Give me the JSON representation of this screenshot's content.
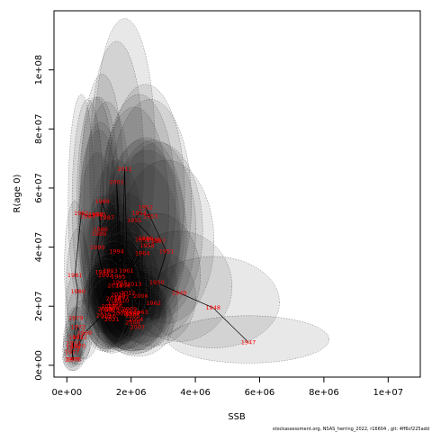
{
  "chart_data": {
    "type": "scatter",
    "xlabel": "SSB",
    "ylabel": "R(age 0)",
    "xlim": [
      -400000,
      11000000
    ],
    "ylim": [
      -4000000,
      120000000
    ],
    "x_ticks": [
      0,
      2000000,
      4000000,
      6000000,
      8000000,
      10000000
    ],
    "x_tick_labels": [
      "0e+00",
      "2e+06",
      "4e+06",
      "6e+06",
      "8e+06",
      "1e+07"
    ],
    "y_ticks": [
      0,
      20000000,
      40000000,
      60000000,
      80000000,
      100000000
    ],
    "y_tick_labels": [
      "0e+00",
      "2e+07",
      "4e+07",
      "6e+07",
      "8e+07",
      "1e+08"
    ],
    "grid": false,
    "footer": "stockassessment.org, NSAS_herring_2022, r16604 , git: 4ff6cf225add",
    "points": [
      {
        "year": "1947",
        "x": 5650000,
        "y": 7800000
      },
      {
        "year": "1948",
        "x": 4550000,
        "y": 19500000
      },
      {
        "year": "1949",
        "x": 3500000,
        "y": 24500000
      },
      {
        "year": "1950",
        "x": 2800000,
        "y": 28000000
      },
      {
        "year": "1951",
        "x": 3100000,
        "y": 38500000
      },
      {
        "year": "1952",
        "x": 2450000,
        "y": 53500000
      },
      {
        "year": "1953",
        "x": 2600000,
        "y": 50500000
      },
      {
        "year": "1954",
        "x": 2250000,
        "y": 51500000
      },
      {
        "year": "1955",
        "x": 2100000,
        "y": 49000000
      },
      {
        "year": "1956",
        "x": 2700000,
        "y": 42500000
      },
      {
        "year": "1957",
        "x": 2850000,
        "y": 42000000
      },
      {
        "year": "1958",
        "x": 2500000,
        "y": 40500000
      },
      {
        "year": "1959",
        "x": 2350000,
        "y": 42500000
      },
      {
        "year": "1960",
        "x": 2450000,
        "y": 43000000
      },
      {
        "year": "1961",
        "x": 1850000,
        "y": 32000000
      },
      {
        "year": "1962",
        "x": 2700000,
        "y": 21000000
      },
      {
        "year": "1963",
        "x": 2300000,
        "y": 18000000
      },
      {
        "year": "1964",
        "x": 2350000,
        "y": 38000000
      },
      {
        "year": "1965",
        "x": 1650000,
        "y": 28000000
      },
      {
        "year": "1966",
        "x": 1500000,
        "y": 20000000
      },
      {
        "year": "1967",
        "x": 2050000,
        "y": 17500000
      },
      {
        "year": "1968",
        "x": 1250000,
        "y": 18500000
      },
      {
        "year": "1969",
        "x": 550000,
        "y": 11000000
      },
      {
        "year": "1970",
        "x": 350000,
        "y": 6500000
      },
      {
        "year": "1971",
        "x": 400000,
        "y": 9500000
      },
      {
        "year": "1972",
        "x": 350000,
        "y": 13000000
      },
      {
        "year": "1973",
        "x": 280000,
        "y": 9500000
      },
      {
        "year": "1974",
        "x": 200000,
        "y": 7500000
      },
      {
        "year": "1975",
        "x": 160000,
        "y": 2000000
      },
      {
        "year": "1976",
        "x": 210000,
        "y": 2000000
      },
      {
        "year": "1977",
        "x": 160000,
        "y": 4500000
      },
      {
        "year": "1978",
        "x": 200000,
        "y": 6000000
      },
      {
        "year": "1979",
        "x": 280000,
        "y": 16000000
      },
      {
        "year": "1980",
        "x": 350000,
        "y": 25000000
      },
      {
        "year": "1981",
        "x": 250000,
        "y": 30500000
      },
      {
        "year": "1982",
        "x": 450000,
        "y": 51500000
      },
      {
        "year": "1983",
        "x": 650000,
        "y": 50500000
      },
      {
        "year": "1984",
        "x": 900000,
        "y": 51000000
      },
      {
        "year": "1985",
        "x": 1000000,
        "y": 51000000
      },
      {
        "year": "1986",
        "x": 1050000,
        "y": 46000000
      },
      {
        "year": "1987",
        "x": 1250000,
        "y": 50000000
      },
      {
        "year": "1988",
        "x": 1100000,
        "y": 55500000
      },
      {
        "year": "1989",
        "x": 1000000,
        "y": 44500000
      },
      {
        "year": "1990",
        "x": 950000,
        "y": 40000000
      },
      {
        "year": "1991",
        "x": 1100000,
        "y": 31500000
      },
      {
        "year": "1992",
        "x": 1200000,
        "y": 30500000
      },
      {
        "year": "1993",
        "x": 1350000,
        "y": 32000000
      },
      {
        "year": "1994",
        "x": 1550000,
        "y": 38500000
      },
      {
        "year": "1995",
        "x": 1600000,
        "y": 30000000
      },
      {
        "year": "1996",
        "x": 1750000,
        "y": 27000000
      },
      {
        "year": "1997",
        "x": 1700000,
        "y": 23000000
      },
      {
        "year": "1998",
        "x": 1500000,
        "y": 21000000
      },
      {
        "year": "1999",
        "x": 1400000,
        "y": 19000000
      },
      {
        "year": "2000",
        "x": 1650000,
        "y": 17500000
      },
      {
        "year": "2001",
        "x": 1550000,
        "y": 62000000
      },
      {
        "year": "2002",
        "x": 1800000,
        "y": 18500000
      },
      {
        "year": "2003",
        "x": 2000000,
        "y": 17500000
      },
      {
        "year": "2004",
        "x": 2150000,
        "y": 15500000
      },
      {
        "year": "2005",
        "x": 2050000,
        "y": 17000000
      },
      {
        "year": "2006",
        "x": 2300000,
        "y": 23500000
      },
      {
        "year": "2007",
        "x": 2200000,
        "y": 13000000
      },
      {
        "year": "2008",
        "x": 2050000,
        "y": 14500000
      },
      {
        "year": "2009",
        "x": 1950000,
        "y": 19000000
      },
      {
        "year": "2010",
        "x": 1700000,
        "y": 22000000
      },
      {
        "year": "2011",
        "x": 1800000,
        "y": 66500000
      },
      {
        "year": "2012",
        "x": 1900000,
        "y": 24500000
      },
      {
        "year": "2013",
        "x": 2100000,
        "y": 27500000
      },
      {
        "year": "2014",
        "x": 1500000,
        "y": 27000000
      },
      {
        "year": "2015",
        "x": 1600000,
        "y": 24000000
      },
      {
        "year": "2016",
        "x": 1450000,
        "y": 22500000
      },
      {
        "year": "2017",
        "x": 1300000,
        "y": 20000000
      },
      {
        "year": "2018",
        "x": 1200000,
        "y": 19000000
      },
      {
        "year": "2019",
        "x": 1150000,
        "y": 17000000
      },
      {
        "year": "2020",
        "x": 1300000,
        "y": 16500000
      },
      {
        "year": "2021",
        "x": 1400000,
        "y": 15500000
      }
    ]
  }
}
